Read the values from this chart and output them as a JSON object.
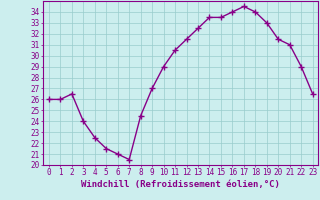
{
  "x": [
    0,
    1,
    2,
    3,
    4,
    5,
    6,
    7,
    8,
    9,
    10,
    11,
    12,
    13,
    14,
    15,
    16,
    17,
    18,
    19,
    20,
    21,
    22,
    23
  ],
  "y": [
    26,
    26,
    26.5,
    24,
    22.5,
    21.5,
    21,
    20.5,
    24.5,
    27,
    29,
    30.5,
    31.5,
    32.5,
    33.5,
    33.5,
    34,
    34.5,
    34,
    33,
    31.5,
    31,
    29,
    26.5
  ],
  "line_color": "#880088",
  "marker": "+",
  "marker_size": 4,
  "linewidth": 1.0,
  "bg_color": "#cceeee",
  "grid_color": "#99cccc",
  "xlabel": "Windchill (Refroidissement éolien,°C)",
  "xlabel_fontsize": 6.5,
  "ytick_labels": [
    "20",
    "21",
    "22",
    "23",
    "24",
    "25",
    "26",
    "27",
    "28",
    "29",
    "30",
    "31",
    "32",
    "33",
    "34"
  ],
  "ylim": [
    20,
    35
  ],
  "xlim": [
    -0.5,
    23.5
  ],
  "xtick_labels": [
    "0",
    "1",
    "2",
    "3",
    "4",
    "5",
    "6",
    "7",
    "8",
    "9",
    "10",
    "11",
    "12",
    "13",
    "14",
    "15",
    "16",
    "17",
    "18",
    "19",
    "20",
    "21",
    "22",
    "23"
  ],
  "tick_fontsize": 5.5,
  "spine_color": "#880088"
}
